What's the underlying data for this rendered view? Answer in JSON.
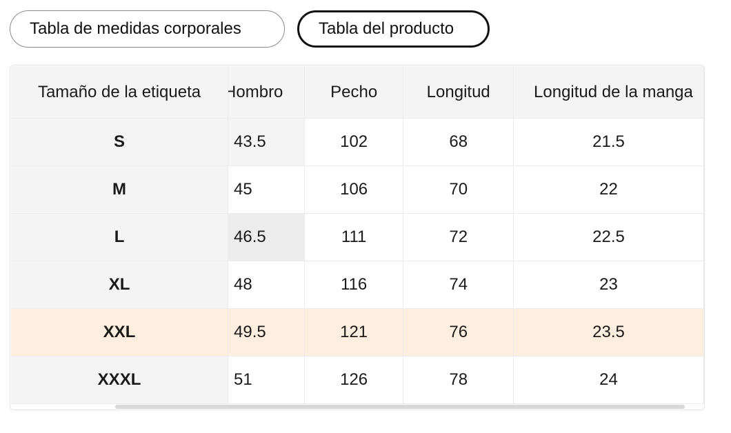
{
  "tabs": [
    {
      "label": "Tabla de medidas corporales",
      "active": false
    },
    {
      "label": "Tabla del producto",
      "active": true
    }
  ],
  "table": {
    "headers": [
      "Tamaño de la etiqueta",
      "Hombro",
      "Pecho",
      "Longitud",
      "Longitud de la manga"
    ],
    "headers_visible": [
      "Tamaño de la etiqueta",
      "Hombro",
      "Pecho",
      "Longitud",
      "Longitud de la manga"
    ],
    "rows": [
      {
        "size": "S",
        "values": [
          "43.5",
          "102",
          "68",
          "21.5"
        ]
      },
      {
        "size": "M",
        "values": [
          "45",
          "106",
          "70",
          "22"
        ]
      },
      {
        "size": "L",
        "values": [
          "46.5",
          "111",
          "72",
          "22.5"
        ]
      },
      {
        "size": "XL",
        "values": [
          "48",
          "116",
          "74",
          "23"
        ]
      },
      {
        "size": "XXL",
        "values": [
          "49.5",
          "121",
          "76",
          "23.5"
        ],
        "highlighted": true
      },
      {
        "size": "XXXL",
        "values": [
          "51",
          "126",
          "78",
          "24"
        ]
      }
    ]
  },
  "colors": {
    "highlight_row": "#fdeee0",
    "header_bg": "#f4f4f4",
    "active_tab_border": "#111111"
  }
}
